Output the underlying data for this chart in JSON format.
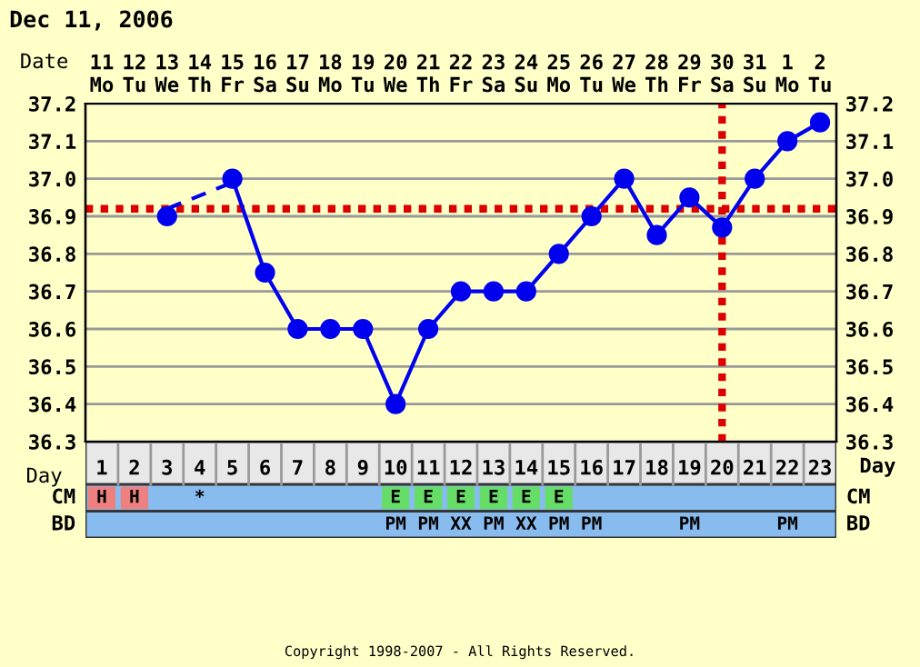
{
  "chart_data": [
    {
      "type": "line",
      "title": "Dec 11, 2006",
      "xlabel": "Day",
      "x2label": "Date",
      "xlim": [
        0.5,
        23.5
      ],
      "xticks": [
        1,
        2,
        3,
        4,
        5,
        6,
        7,
        8,
        9,
        10,
        11,
        12,
        13,
        14,
        15,
        16,
        17,
        18,
        19,
        20,
        21,
        22,
        23
      ],
      "x2lim": [
        "2006-12-10T12:00",
        "2007-01-02T12:00"
      ],
      "x2ticks": [
        {
          "value": "2006-12-11",
          "label": "11\nMo"
        },
        {
          "value": "2006-12-12",
          "label": "12\nTu"
        },
        {
          "value": "2006-12-13",
          "label": "13\nWe"
        },
        {
          "value": "2006-12-14",
          "label": "14\nTh"
        },
        {
          "value": "2006-12-15",
          "label": "15\nFr"
        },
        {
          "value": "2006-12-16",
          "label": "16\nSa"
        },
        {
          "value": "2006-12-17",
          "label": "17\nSu"
        },
        {
          "value": "2006-12-18",
          "label": "18\nMo"
        },
        {
          "value": "2006-12-19",
          "label": "19\nTu"
        },
        {
          "value": "2006-12-20",
          "label": "20\nWe"
        },
        {
          "value": "2006-12-21",
          "label": "21\nTh"
        },
        {
          "value": "2006-12-22",
          "label": "22\nFr"
        },
        {
          "value": "2006-12-23",
          "label": "23\nSa"
        },
        {
          "value": "2006-12-24",
          "label": "24\nSu"
        },
        {
          "value": "2006-12-25",
          "label": "25\nMo"
        },
        {
          "value": "2006-12-26",
          "label": "26\nTu"
        },
        {
          "value": "2006-12-27",
          "label": "27\nWe"
        },
        {
          "value": "2006-12-28",
          "label": "28\nTh"
        },
        {
          "value": "2006-12-29",
          "label": "29\nFr"
        },
        {
          "value": "2006-12-30",
          "label": "30\nSa"
        },
        {
          "value": "2006-12-31",
          "label": "31\nSu"
        },
        {
          "value": "2007-01-01",
          "label": "1\nMo"
        },
        {
          "value": "2007-01-02",
          "label": "2\nTu"
        }
      ],
      "ylim": [
        36.3,
        37.2
      ],
      "yticks": [
        36.3,
        36.4,
        36.5,
        36.6,
        36.7,
        36.8,
        36.9,
        {
          "value": 37.0,
          "label": "37.0"
        },
        37.1,
        37.2
      ],
      "y2lim": [
        36.3,
        37.2
      ],
      "y2ticks": [
        36.3,
        36.4,
        36.5,
        36.6,
        36.7,
        36.8,
        36.9,
        {
          "value": 37.0,
          "label": "37.0"
        },
        37.1,
        37.2
      ],
      "grid": true,
      "legend": false,
      "series": [
        {
          "color": "#0000ee",
          "marker": "circle",
          "line_style": "solid",
          "x": [
            3,
            4,
            5,
            6,
            7,
            8,
            9,
            10,
            11,
            12,
            13,
            14,
            15,
            16,
            17,
            18,
            19,
            20,
            21,
            22,
            23
          ],
          "values": [
            36.9,
            null,
            37.0,
            36.75,
            36.6,
            36.6,
            36.6,
            36.4,
            36.6,
            36.7,
            36.7,
            36.7,
            36.8,
            36.9,
            37.0,
            36.85,
            36.95,
            36.87,
            37.0,
            37.1,
            37.15
          ]
        },
        {
          "color": "#0000ee",
          "marker": "none",
          "line_style": "dashed",
          "x": [
            3,
            5
          ],
          "values": [
            36.92,
            36.99
          ]
        }
      ],
      "ref_lines": [
        {
          "axis": "y",
          "value": 36.92,
          "color": "#dd0000",
          "line_style": "dotted"
        },
        {
          "axis": "x",
          "value": 20,
          "color": "#dd0000",
          "line_style": "dotted"
        }
      ],
      "annotations": [
        "Copyright 1998-2007 - All Rights Reserved."
      ]
    },
    {
      "type": "other",
      "y_categories": [
        "CM",
        "BD"
      ],
      "y2_categories": [
        "CM",
        "BD"
      ],
      "cell_labels": [
        [
          "H",
          "H",
          null,
          "*",
          null,
          null,
          null,
          null,
          null,
          "E",
          "E",
          "E",
          "E",
          "E",
          "E",
          null,
          null,
          null,
          null,
          null,
          null,
          null,
          null
        ],
        [
          null,
          null,
          null,
          null,
          null,
          null,
          null,
          null,
          null,
          "PM",
          "PM",
          "XX",
          "PM",
          "XX",
          "PM",
          "PM",
          null,
          null,
          "PM",
          null,
          null,
          "PM",
          null
        ]
      ],
      "colors": [
        [
          "#ee8080",
          "#ee8080",
          "#88bbee",
          "#88bbee",
          "#88bbee",
          "#88bbee",
          "#88bbee",
          "#88bbee",
          "#88bbee",
          "#66dd66",
          "#66dd66",
          "#66dd66",
          "#66dd66",
          "#66dd66",
          "#66dd66",
          "#88bbee",
          "#88bbee",
          "#88bbee",
          "#88bbee",
          "#88bbee",
          "#88bbee",
          "#88bbee",
          "#88bbee"
        ],
        [
          "#88bbee",
          "#88bbee",
          "#88bbee",
          "#88bbee",
          "#88bbee",
          "#88bbee",
          "#88bbee",
          "#88bbee",
          "#88bbee",
          "#88bbee",
          "#88bbee",
          "#88bbee",
          "#88bbee",
          "#88bbee",
          "#88bbee",
          "#88bbee",
          "#88bbee",
          "#88bbee",
          "#88bbee",
          "#88bbee",
          "#88bbee",
          "#88bbee",
          "#88bbee"
        ]
      ]
    }
  ]
}
